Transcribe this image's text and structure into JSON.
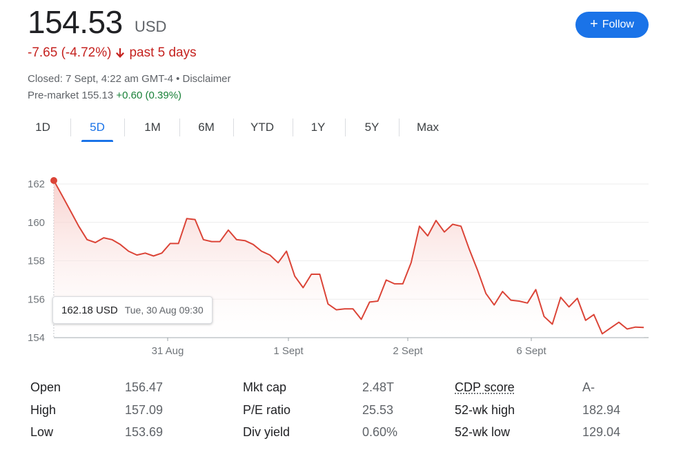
{
  "quote": {
    "price": "154.53",
    "currency": "USD",
    "change": "-7.65 (-4.72%)",
    "period": "past 5 days",
    "closed": "Closed: 7 Sept, 4:22 am GMT-4 • Disclaimer",
    "premarket_label": "Pre-market 155.13",
    "premarket_change": "+0.60 (0.39%)"
  },
  "follow_button": {
    "label": "Follow",
    "icon": "plus-icon"
  },
  "tabs": [
    {
      "label": "1D",
      "active": false
    },
    {
      "label": "5D",
      "active": true
    },
    {
      "label": "1M",
      "active": false
    },
    {
      "label": "6M",
      "active": false
    },
    {
      "label": "YTD",
      "active": false
    },
    {
      "label": "1Y",
      "active": false
    },
    {
      "label": "5Y",
      "active": false
    },
    {
      "label": "Max",
      "active": false
    }
  ],
  "tooltip": {
    "price": "162.18 USD",
    "datetime": "Tue, 30 Aug 09:30"
  },
  "colors": {
    "line": "#db4437",
    "fill": "#fbe9e7",
    "accent": "#1a73e8",
    "negative": "#c5221f",
    "positive": "#188038"
  },
  "chart_data": {
    "type": "line",
    "x_ticks": [
      "31 Aug",
      "1 Sept",
      "2 Sept",
      "6 Sept"
    ],
    "y_ticks": [
      162,
      160,
      158,
      156,
      154
    ],
    "ylim": [
      154,
      162
    ],
    "grid": true,
    "series": [
      {
        "values": [
          162.18,
          161.4,
          160.6,
          159.8,
          159.1,
          158.95,
          159.2,
          159.1,
          158.85,
          158.5,
          158.3,
          158.4,
          158.25,
          158.4,
          158.9,
          158.9,
          160.2,
          160.15,
          159.1,
          159.0,
          159.0,
          159.6,
          159.1,
          159.05,
          158.85,
          158.5,
          158.3,
          157.9,
          158.5,
          157.2,
          156.6,
          157.3,
          157.3,
          155.75,
          155.45,
          155.5,
          155.5,
          154.95,
          155.85,
          155.9,
          157.0,
          156.8,
          156.8,
          157.9,
          159.8,
          159.3,
          160.1,
          159.5,
          159.9,
          159.8,
          158.6,
          157.5,
          156.3,
          155.7,
          156.4,
          155.95,
          155.9,
          155.8,
          156.5,
          155.1,
          154.7,
          156.1,
          155.6,
          156.05,
          154.9,
          155.2,
          154.2,
          154.5,
          154.8,
          154.45,
          154.55,
          154.53
        ]
      }
    ]
  },
  "stats": {
    "col1": [
      {
        "label": "Open",
        "value": "156.47"
      },
      {
        "label": "High",
        "value": "157.09"
      },
      {
        "label": "Low",
        "value": "153.69"
      }
    ],
    "col2": [
      {
        "label": "Mkt cap",
        "value": "2.48T"
      },
      {
        "label": "P/E ratio",
        "value": "25.53"
      },
      {
        "label": "Div yield",
        "value": "0.60%"
      }
    ],
    "col3": [
      {
        "label": "CDP score",
        "value": "A-"
      },
      {
        "label": "52-wk high",
        "value": "182.94"
      },
      {
        "label": "52-wk low",
        "value": "129.04"
      }
    ]
  }
}
